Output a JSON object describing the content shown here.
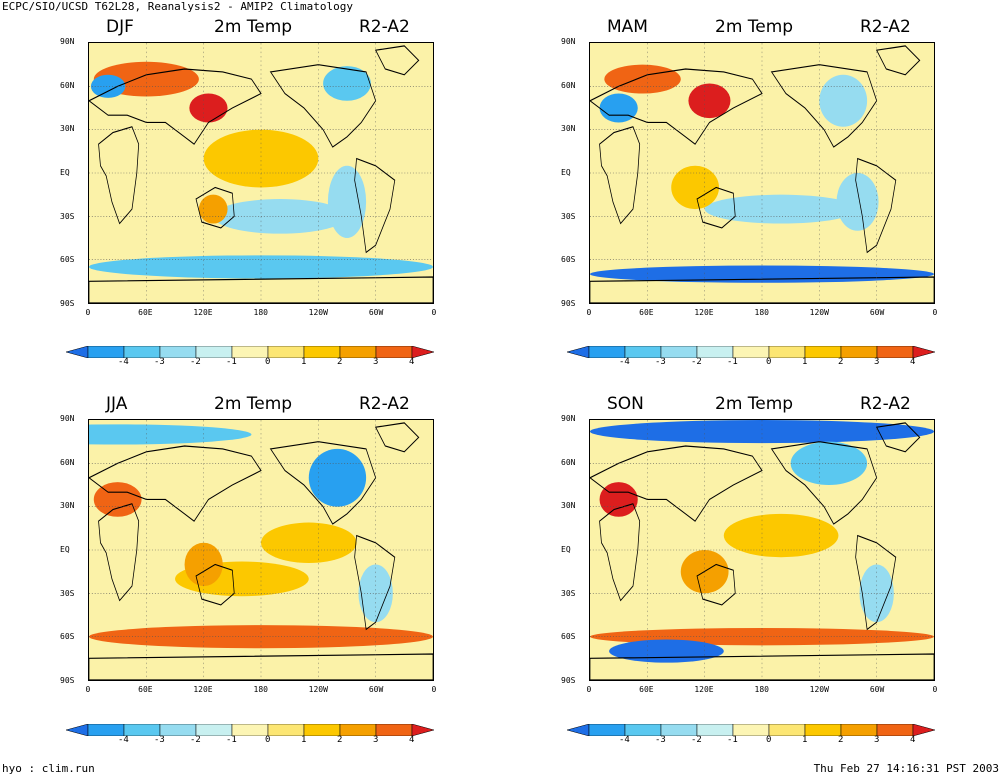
{
  "header": {
    "title": "ECPC/SIO/UCSD T62L28, Reanalysis2 - AMIP2 Climatology"
  },
  "footer": {
    "left": "hyo : clim.run",
    "right": "Thu Feb 27 14:16:31 PST 2003"
  },
  "variable": "2m Temp",
  "experiment": "R2-A2",
  "panels": [
    {
      "season": "DJF"
    },
    {
      "season": "MAM"
    },
    {
      "season": "JJA"
    },
    {
      "season": "SON"
    }
  ],
  "lat_labels": [
    "90N",
    "60N",
    "30N",
    "EQ",
    "30S",
    "60S",
    "90S"
  ],
  "lon_labels": [
    "0",
    "60E",
    "120E",
    "180",
    "120W",
    "60W",
    "0"
  ],
  "colorbar": {
    "labels": [
      "-4",
      "-3",
      "-2",
      "-1",
      "0",
      "1",
      "2",
      "3",
      "4"
    ],
    "colors": [
      "#1e6ee6",
      "#28a0f0",
      "#5ac8f0",
      "#96dcf0",
      "#c8f0f0",
      "#fcf5b4",
      "#fce673",
      "#fcc800",
      "#f5a000",
      "#f06414",
      "#dc1e1e"
    ]
  }
}
